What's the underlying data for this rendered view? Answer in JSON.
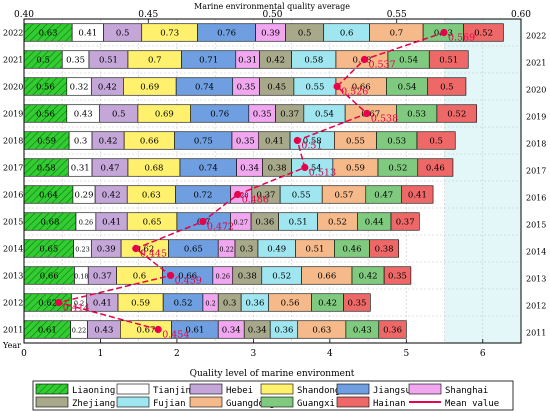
{
  "chart_data": {
    "type": "bar",
    "orientation": "horizontal",
    "stacked": true,
    "title": "Marine environmental quality average",
    "xlabel": "Quality level of marine environment",
    "ylabel": "Year",
    "xlim": [
      0,
      6.5
    ],
    "top_axis": {
      "label": "Marine environmental quality average",
      "lim": [
        0.4,
        0.6
      ],
      "ticks": [
        "0.40",
        "0.45",
        "0.50",
        "0.55",
        "0.60"
      ]
    },
    "bottom_ticks": [
      "0",
      "1",
      "2",
      "3",
      "4",
      "5",
      "6"
    ],
    "grid": true,
    "legend_position": "bottom",
    "categories": [
      "2011",
      "2012",
      "2013",
      "2014",
      "2015",
      "2016",
      "2017",
      "2018",
      "2019",
      "2020",
      "2021",
      "2022"
    ],
    "series": [
      {
        "name": "Liaoning",
        "color": "#33cc33",
        "hatch": true,
        "values": [
          0.61,
          0.62,
          0.66,
          0.65,
          0.68,
          0.64,
          0.58,
          0.59,
          0.56,
          0.56,
          0.5,
          0.63
        ]
      },
      {
        "name": "Tianjin",
        "color": "#ffffff",
        "values": [
          0.22,
          0.2,
          0.18,
          0.23,
          0.26,
          0.29,
          0.31,
          0.3,
          0.43,
          0.32,
          0.35,
          0.41
        ]
      },
      {
        "name": "Hebei",
        "color": "#c4a6d9",
        "values": [
          0.43,
          0.41,
          0.37,
          0.39,
          0.41,
          0.42,
          0.47,
          0.42,
          0.5,
          0.42,
          0.51,
          0.5
        ]
      },
      {
        "name": "Shandong",
        "color": "#fff06e",
        "values": [
          0.67,
          0.59,
          0.6,
          0.62,
          0.65,
          0.63,
          0.68,
          0.66,
          0.69,
          0.69,
          0.7,
          0.73
        ]
      },
      {
        "name": "Jiangsu",
        "color": "#6f9fe0",
        "values": [
          0.61,
          0.52,
          0.66,
          0.65,
          0.7,
          0.72,
          0.74,
          0.75,
          0.76,
          0.74,
          0.71,
          0.76
        ]
      },
      {
        "name": "Shanghai",
        "color": "#f1a6f0",
        "values": [
          0.34,
          0.2,
          0.26,
          0.22,
          0.27,
          0.28,
          0.34,
          0.35,
          0.35,
          0.35,
          0.31,
          0.39
        ]
      },
      {
        "name": "Zhejiang",
        "color": "#a8a88a",
        "values": [
          0.34,
          0.3,
          0.38,
          0.3,
          0.36,
          0.37,
          0.38,
          0.41,
          0.37,
          0.45,
          0.42,
          0.5
        ]
      },
      {
        "name": "Fujian",
        "color": "#9fe6f0",
        "values": [
          0.36,
          0.36,
          0.52,
          0.49,
          0.51,
          0.55,
          0.54,
          0.58,
          0.54,
          0.55,
          0.58,
          0.6
        ]
      },
      {
        "name": "Guangdong",
        "color": "#f5b98a",
        "values": [
          0.63,
          0.56,
          0.66,
          0.51,
          0.52,
          0.57,
          0.59,
          0.55,
          0.67,
          0.66,
          0.68,
          0.7
        ]
      },
      {
        "name": "Guangxi",
        "color": "#7fca7f",
        "values": [
          0.43,
          0.42,
          0.42,
          0.46,
          0.44,
          0.47,
          0.52,
          0.53,
          0.53,
          0.54,
          0.54,
          0.53
        ]
      },
      {
        "name": "Hainan",
        "color": "#ef6868",
        "values": [
          0.36,
          0.35,
          0.35,
          0.38,
          0.37,
          0.41,
          0.46,
          0.5,
          0.52,
          0.5,
          0.51,
          0.52
        ]
      }
    ],
    "mean_value": {
      "name": "Mean value",
      "color": "#e8004a",
      "values": [
        0.454,
        0.414,
        0.459,
        0.445,
        0.472,
        0.486,
        0.513,
        0.51,
        0.538,
        0.526,
        0.537,
        0.569
      ],
      "labels": [
        "0.454",
        "0.414",
        "0.459",
        "0.445",
        "0.472",
        "0.486",
        "0.513",
        "0.51",
        "0.538",
        "0.526",
        "0.537",
        "0.569"
      ]
    }
  }
}
